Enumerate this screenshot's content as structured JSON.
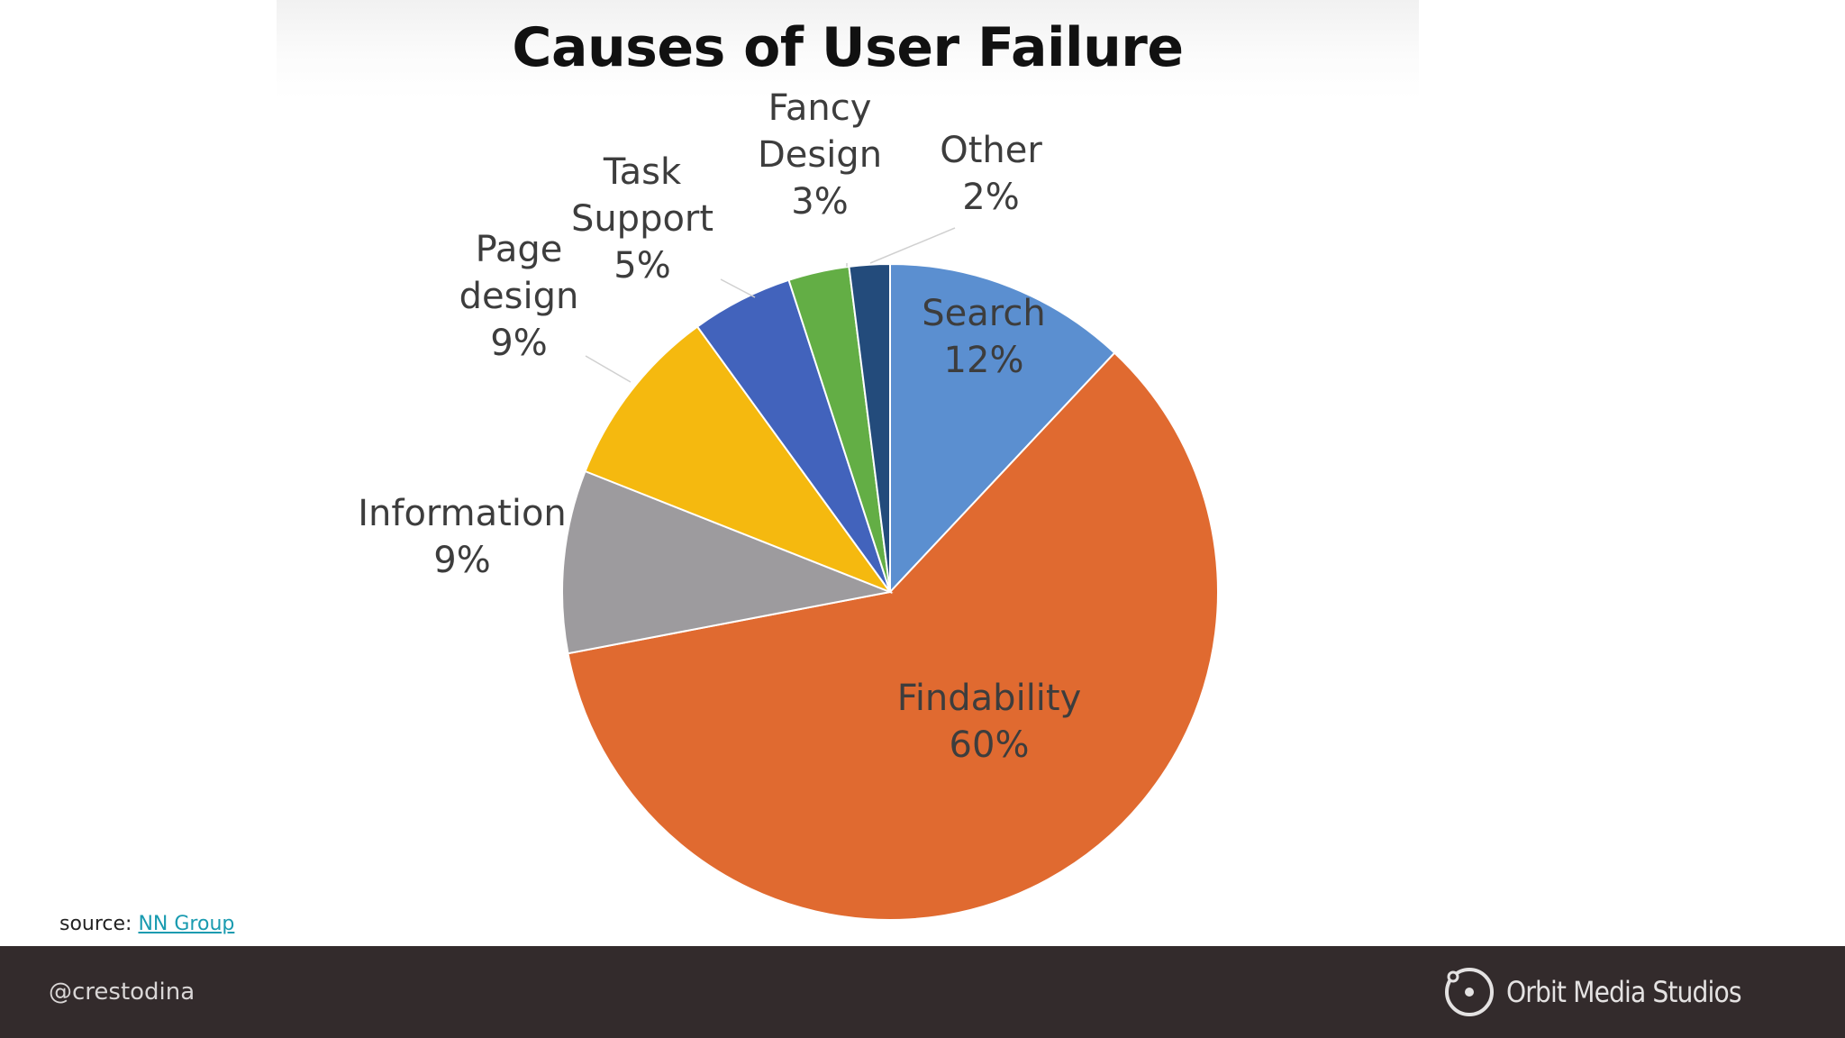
{
  "chart_data": {
    "type": "pie",
    "title": "Causes of User Failure",
    "slices": [
      {
        "label": [
          "Search",
          "12%"
        ],
        "value": 12,
        "color": "#5b8fd0"
      },
      {
        "label": [
          "Findability",
          "60%"
        ],
        "value": 60,
        "color": "#e06a30"
      },
      {
        "label": [
          "Information",
          "9%"
        ],
        "value": 9,
        "color": "#9d9b9e"
      },
      {
        "label": [
          "Page",
          "design",
          "9%"
        ],
        "value": 9,
        "color": "#f5b90f"
      },
      {
        "label": [
          "Task",
          "Support",
          "5%"
        ],
        "value": 5,
        "color": "#4263bc"
      },
      {
        "label": [
          "Fancy",
          "Design",
          "3%"
        ],
        "value": 3,
        "color": "#63ae45"
      },
      {
        "label": [
          "Other",
          "2%"
        ],
        "value": 2,
        "color": "#234b7b"
      }
    ]
  },
  "source": {
    "prefix": "source: ",
    "link_text": "NN Group"
  },
  "footer": {
    "handle": "@crestodina",
    "brand": "Orbit Media Studios"
  },
  "icons": {
    "brand_logo": "orbit-logo-icon"
  }
}
